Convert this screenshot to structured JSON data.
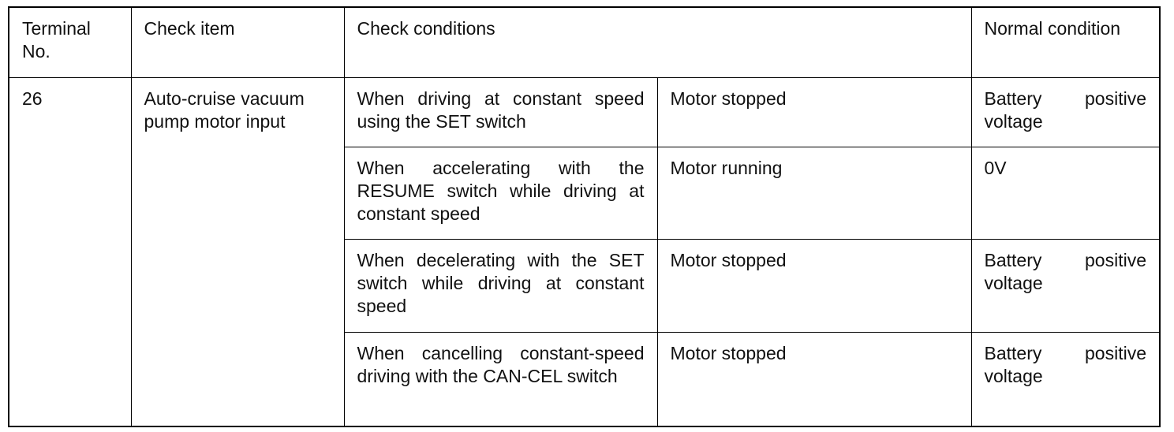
{
  "header": {
    "terminal_no": "Terminal No.",
    "check_item": "Check item",
    "check_conditions": "Check conditions",
    "normal_condition": "Normal condition"
  },
  "terminal": "26",
  "item": "Auto-cruise vacuum pump motor input",
  "rows": [
    {
      "condition": "When driving at constant speed using the SET switch",
      "state": "Motor stopped",
      "normal": "Battery positive voltage"
    },
    {
      "condition": "When accelerating with the RESUME switch while driving at constant speed",
      "state": "Motor running",
      "normal": "0V"
    },
    {
      "condition": "When decelerating with the SET switch while driving at constant speed",
      "state": "Motor stopped",
      "normal": "Battery positive voltage"
    },
    {
      "condition": "When cancelling constant-speed driving with the CAN-CEL switch",
      "state": "Motor stopped",
      "normal": "Battery positive voltage"
    }
  ]
}
